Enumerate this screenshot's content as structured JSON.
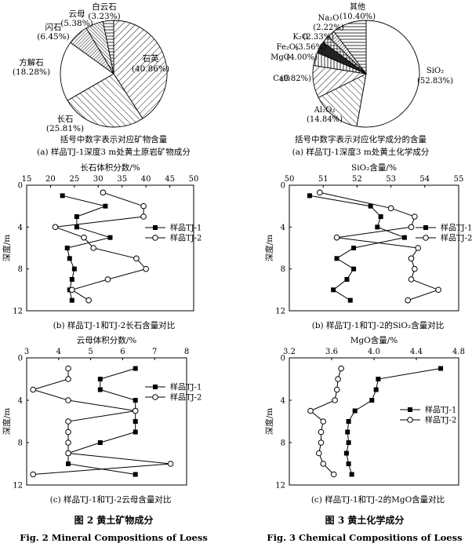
{
  "chart_data": [
    {
      "type": "pie",
      "slices": [
        {
          "label": "石英",
          "pct": "(40.86%)",
          "value": 40.86,
          "pattern": "diag-right"
        },
        {
          "label": "长石",
          "pct": "(25.81%)",
          "value": 25.81,
          "pattern": "diag-left"
        },
        {
          "label": "方解石",
          "pct": "(18.28%)",
          "value": 18.28,
          "pattern": "blank"
        },
        {
          "label": "闪石",
          "pct": "(6.45%)",
          "value": 6.45,
          "pattern": "diag-right-dense"
        },
        {
          "label": "云母",
          "pct": "(5.38%)",
          "value": 5.38,
          "pattern": "diag-left-dense"
        },
        {
          "label": "白云石",
          "pct": "(3.23%)",
          "value": 3.23,
          "pattern": "horizontal"
        }
      ],
      "note": "括号中数字表示对应矿物含量",
      "caption": "(a)   样品TJ-1深度3 m处黄土原岩矿物成分"
    },
    {
      "type": "pie",
      "slices": [
        {
          "label": "SiO₂",
          "pct": "(52.83%)",
          "value": 52.83,
          "pattern": "blank"
        },
        {
          "label": "Al₂O₃",
          "pct": "(14.84%)",
          "value": 14.84,
          "pattern": "diag-left"
        },
        {
          "label": "CaO",
          "pct": "(9.82%)",
          "value": 9.82,
          "pattern": "diag-right"
        },
        {
          "label": "MgO",
          "pct": "(4.00%)",
          "value": 4.0,
          "pattern": "vertical"
        },
        {
          "label": "Fe₂O₃",
          "pct": "(3.56%)",
          "value": 3.56,
          "pattern": "dark"
        },
        {
          "label": "K₂O",
          "pct": "(2.33%)",
          "value": 2.33,
          "pattern": "cross"
        },
        {
          "label": "Na₂O",
          "pct": "(2.22%)",
          "value": 2.22,
          "pattern": "diag-right-dense"
        },
        {
          "label": "其他",
          "pct": "(10.40%)",
          "value": 10.4,
          "pattern": "horizontal"
        }
      ],
      "note": "括号中数字表示对应化学成分的含量",
      "caption": "(a)   样品TJ-1深度3 m处黄土化学成分"
    },
    {
      "type": "line",
      "xlabel": "长石体积分数/%",
      "ylabel": "深度/m",
      "xlim": [
        15,
        50
      ],
      "xticks": [
        15,
        20,
        25,
        30,
        35,
        40,
        45,
        50
      ],
      "ylim": [
        0,
        12
      ],
      "yticks": [
        0,
        4,
        8,
        12
      ],
      "series": [
        {
          "name": "样品TJ-1",
          "marker": "square",
          "points": [
            [
              22.5,
              1
            ],
            [
              31.5,
              2
            ],
            [
              25.5,
              3
            ],
            [
              25.5,
              4
            ],
            [
              32.5,
              5
            ],
            [
              23.5,
              6
            ],
            [
              24,
              7
            ],
            [
              25,
              8
            ],
            [
              24.5,
              9
            ],
            [
              24,
              10
            ],
            [
              24.5,
              11
            ]
          ]
        },
        {
          "name": "样品TJ-2",
          "marker": "circle",
          "points": [
            [
              31,
              0.7
            ],
            [
              39.5,
              2
            ],
            [
              39.5,
              3
            ],
            [
              21,
              4
            ],
            [
              27,
              5
            ],
            [
              29,
              6
            ],
            [
              38,
              7
            ],
            [
              40,
              8
            ],
            [
              32,
              9
            ],
            [
              24.5,
              10
            ],
            [
              28,
              11
            ]
          ]
        }
      ],
      "caption": "(b)   样品TJ-1和TJ-2长石含量对比"
    },
    {
      "type": "line",
      "xlabel": "SiO₂含量/%",
      "ylabel": "深度/m",
      "xlim": [
        50,
        55
      ],
      "xticks": [
        50,
        51,
        52,
        53,
        54,
        55
      ],
      "ylim": [
        0,
        12
      ],
      "yticks": [
        0,
        4,
        8,
        12
      ],
      "series": [
        {
          "name": "样品TJ-1",
          "marker": "square",
          "points": [
            [
              50.6,
              1
            ],
            [
              52.4,
              2
            ],
            [
              52.7,
              3
            ],
            [
              52.6,
              4
            ],
            [
              53.4,
              5
            ],
            [
              51.9,
              6
            ],
            [
              51.4,
              7
            ],
            [
              51.9,
              8
            ],
            [
              51.7,
              9
            ],
            [
              51.3,
              10
            ],
            [
              51.8,
              11
            ]
          ]
        },
        {
          "name": "样品TJ-2",
          "marker": "circle",
          "points": [
            [
              50.9,
              0.7
            ],
            [
              53,
              2.2
            ],
            [
              53.7,
              3
            ],
            [
              53.6,
              4
            ],
            [
              51.4,
              5
            ],
            [
              53.8,
              6
            ],
            [
              53.6,
              7
            ],
            [
              53.7,
              8
            ],
            [
              53.6,
              9
            ],
            [
              54.4,
              10
            ],
            [
              53.5,
              11
            ]
          ]
        }
      ],
      "caption": "(b)   样品TJ-1和TJ-2的SiO₂含量对比"
    },
    {
      "type": "line",
      "xlabel": "云母体积分数/%",
      "ylabel": "深度/m",
      "xlim": [
        3,
        8
      ],
      "xticks": [
        3,
        4,
        5,
        6,
        7,
        8
      ],
      "ylim": [
        0,
        12
      ],
      "yticks": [
        0,
        4,
        8,
        12
      ],
      "series": [
        {
          "name": "样品TJ-1",
          "marker": "square",
          "points": [
            [
              6.4,
              1
            ],
            [
              5.3,
              2
            ],
            [
              5.3,
              3
            ],
            [
              6.4,
              4
            ],
            [
              6.4,
              5
            ],
            [
              6.4,
              6
            ],
            [
              6.4,
              7
            ],
            [
              5.3,
              8
            ],
            [
              4.3,
              9
            ],
            [
              4.3,
              10
            ],
            [
              6.4,
              11
            ]
          ]
        },
        {
          "name": "样品TJ-2",
          "marker": "circle",
          "points": [
            [
              4.3,
              1
            ],
            [
              4.3,
              2
            ],
            [
              3.2,
              3
            ],
            [
              4.3,
              4
            ],
            [
              6.4,
              5
            ],
            [
              4.3,
              6
            ],
            [
              4.3,
              7
            ],
            [
              4.3,
              8
            ],
            [
              4.3,
              9
            ],
            [
              7.5,
              10
            ],
            [
              3.2,
              11
            ]
          ]
        }
      ],
      "caption": "(c)   样品TJ-1和TJ-2云母含量对比"
    },
    {
      "type": "line",
      "xlabel": "MgO含量/%",
      "ylabel": "深度/m",
      "xlim": [
        3.2,
        4.8
      ],
      "xticks": [
        3.2,
        3.6,
        4.0,
        4.4,
        4.8
      ],
      "ylim": [
        0,
        12
      ],
      "yticks": [
        0,
        4,
        8,
        12
      ],
      "series": [
        {
          "name": "样品TJ-1",
          "marker": "square",
          "points": [
            [
              4.63,
              1
            ],
            [
              4.04,
              2
            ],
            [
              4.02,
              3
            ],
            [
              3.98,
              4
            ],
            [
              3.82,
              5
            ],
            [
              3.76,
              6
            ],
            [
              3.75,
              7
            ],
            [
              3.76,
              8
            ],
            [
              3.74,
              9
            ],
            [
              3.76,
              10
            ],
            [
              3.79,
              11
            ]
          ]
        },
        {
          "name": "样品TJ-2",
          "marker": "circle",
          "points": [
            [
              3.69,
              1
            ],
            [
              3.66,
              2
            ],
            [
              3.65,
              3
            ],
            [
              3.63,
              4
            ],
            [
              3.4,
              5
            ],
            [
              3.52,
              6
            ],
            [
              3.5,
              7
            ],
            [
              3.5,
              8
            ],
            [
              3.48,
              9
            ],
            [
              3.52,
              10
            ],
            [
              3.62,
              11
            ]
          ]
        }
      ],
      "caption": "(c)   样品TJ-1和TJ-2的MgO含量对比"
    }
  ],
  "figures": [
    {
      "title_cn": "图 2    黄土矿物成分",
      "title_en": "Fig. 2    Mineral Compositions of Loess"
    },
    {
      "title_cn": "图 3    黄土化学成分",
      "title_en": "Fig. 3    Chemical Compositions of Loess"
    }
  ]
}
